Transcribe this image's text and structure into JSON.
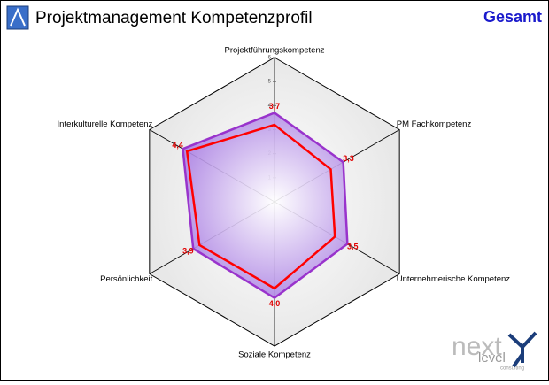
{
  "chart_data": {
    "type": "radar",
    "title": "Projektmanagement Kompetenzprofil",
    "subtitle": "Gesamt",
    "categories": [
      "Projektführungskompetenz",
      "PM Fachkompetenz",
      "Unternehmerische Kompetenz",
      "Soziale Kompetenz",
      "Persönlichkeit",
      "Interkulturelle Kompetenz"
    ],
    "series": [
      {
        "color": "#9933cc",
        "fill": true,
        "values": [
          3.7,
          3.3,
          3.5,
          4.0,
          3.9,
          4.4
        ],
        "value_labels": [
          "3,7",
          "3,3",
          "3,5",
          "4,0",
          "3,9",
          "4,4"
        ]
      },
      {
        "color": "#ff0000",
        "fill": false,
        "values": [
          3.2,
          2.7,
          2.9,
          3.6,
          3.6,
          4.2
        ]
      }
    ],
    "ylim": [
      0,
      6
    ],
    "yticks": [
      1,
      2,
      3,
      4,
      5,
      6
    ],
    "logo": {
      "word1": "next",
      "word2": "level",
      "word3": "consulting"
    }
  }
}
